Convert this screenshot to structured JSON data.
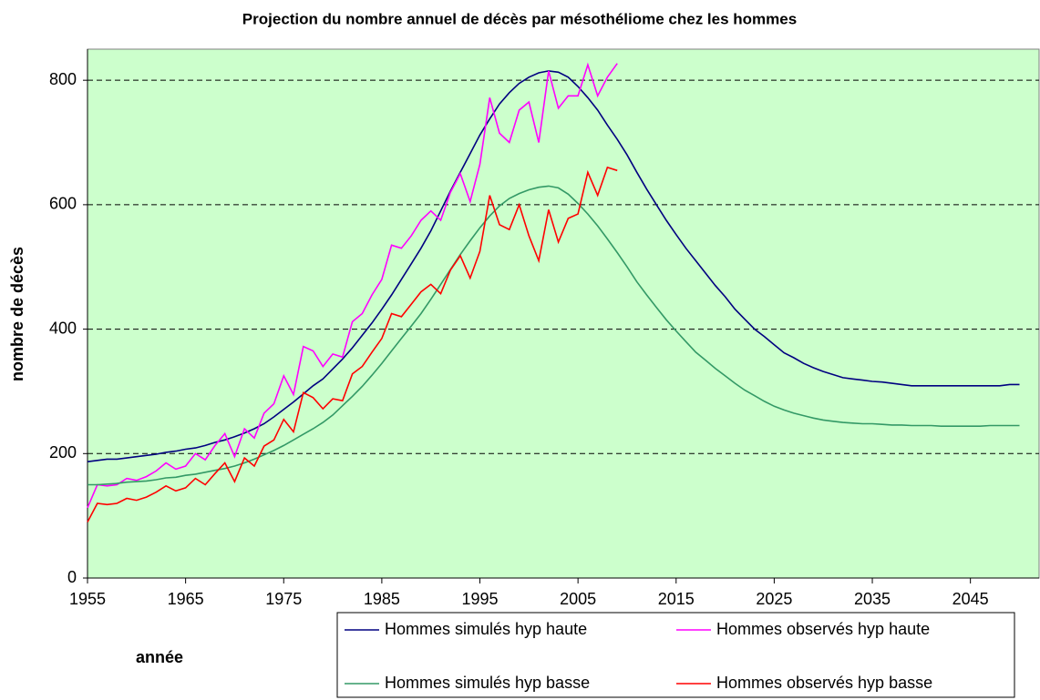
{
  "chart_data": {
    "type": "line",
    "title": "Projection du nombre annuel de décès par mésothéliome chez les hommes",
    "xlabel": "année",
    "ylabel": "nombre de décès",
    "x": [
      1955,
      1956,
      1957,
      1958,
      1959,
      1960,
      1961,
      1962,
      1963,
      1964,
      1965,
      1966,
      1967,
      1968,
      1969,
      1970,
      1971,
      1972,
      1973,
      1974,
      1975,
      1976,
      1977,
      1978,
      1979,
      1980,
      1981,
      1982,
      1983,
      1984,
      1985,
      1986,
      1987,
      1988,
      1989,
      1990,
      1991,
      1992,
      1993,
      1994,
      1995,
      1996,
      1997,
      1998,
      1999,
      2000,
      2001,
      2002,
      2003,
      2004,
      2005,
      2006,
      2007,
      2008,
      2009,
      2010,
      2011,
      2012,
      2013,
      2014,
      2015,
      2016,
      2017,
      2018,
      2019,
      2020,
      2021,
      2022,
      2023,
      2024,
      2025,
      2026,
      2027,
      2028,
      2029,
      2030,
      2031,
      2032,
      2033,
      2034,
      2035,
      2036,
      2037,
      2038,
      2039,
      2040,
      2041,
      2042,
      2043,
      2044,
      2045,
      2046,
      2047,
      2048,
      2049,
      2050
    ],
    "series": [
      {
        "name": "Hommes simulés hyp haute",
        "color": "#000080",
        "values": [
          187,
          189,
          191,
          191,
          193,
          195,
          197,
          199,
          202,
          204,
          207,
          209,
          213,
          218,
          222,
          227,
          233,
          240,
          248,
          259,
          271,
          283,
          296,
          309,
          320,
          336,
          352,
          370,
          390,
          410,
          432,
          455,
          480,
          505,
          530,
          558,
          590,
          622,
          652,
          682,
          712,
          738,
          762,
          780,
          795,
          805,
          812,
          815,
          813,
          805,
          790,
          772,
          752,
          728,
          705,
          680,
          652,
          625,
          600,
          575,
          552,
          530,
          510,
          490,
          470,
          452,
          432,
          416,
          400,
          388,
          375,
          362,
          354,
          345,
          338,
          332,
          327,
          322,
          320,
          318,
          316,
          315,
          313,
          311,
          309,
          309,
          309,
          309,
          309,
          309,
          309,
          309,
          309,
          309,
          311,
          311
        ]
      },
      {
        "name": "Hommes observés hyp haute",
        "color": "#ff00ff",
        "values": [
          113,
          150,
          148,
          150,
          160,
          157,
          163,
          172,
          185,
          175,
          180,
          200,
          190,
          213,
          232,
          195,
          240,
          225,
          265,
          280,
          325,
          295,
          372,
          365,
          340,
          360,
          355,
          412,
          425,
          455,
          480,
          535,
          530,
          550,
          575,
          590,
          575,
          620,
          650,
          605,
          665,
          772,
          715,
          700,
          752,
          765,
          700,
          815,
          755,
          775,
          775,
          825,
          775,
          805,
          827,
          null,
          null,
          null,
          null,
          null,
          null,
          null,
          null,
          null,
          null,
          null,
          null,
          null,
          null,
          null,
          null,
          null,
          null,
          null,
          null,
          null,
          null,
          null,
          null,
          null,
          null,
          null,
          null,
          null,
          null,
          null,
          null,
          null,
          null,
          null,
          null,
          null,
          null,
          null,
          null,
          null
        ]
      },
      {
        "name": "Hommes simulés hyp basse",
        "color": "#339966",
        "values": [
          150,
          150,
          151,
          152,
          154,
          155,
          156,
          158,
          161,
          162,
          165,
          167,
          170,
          173,
          176,
          180,
          185,
          191,
          198,
          205,
          213,
          222,
          231,
          240,
          250,
          262,
          277,
          292,
          308,
          326,
          345,
          365,
          385,
          405,
          425,
          448,
          472,
          496,
          520,
          542,
          563,
          582,
          598,
          610,
          618,
          624,
          628,
          630,
          627,
          617,
          602,
          585,
          566,
          545,
          523,
          500,
          476,
          455,
          435,
          415,
          397,
          380,
          363,
          350,
          337,
          325,
          313,
          302,
          293,
          284,
          276,
          270,
          265,
          261,
          257,
          254,
          252,
          250,
          249,
          248,
          248,
          247,
          246,
          246,
          245,
          245,
          245,
          244,
          244,
          244,
          244,
          244,
          245,
          245,
          245,
          245
        ]
      },
      {
        "name": "Hommes observés hyp basse",
        "color": "#ff0000",
        "values": [
          90,
          120,
          118,
          120,
          128,
          125,
          130,
          138,
          148,
          140,
          145,
          160,
          150,
          168,
          185,
          155,
          193,
          180,
          212,
          222,
          255,
          235,
          298,
          290,
          272,
          288,
          285,
          328,
          340,
          363,
          385,
          425,
          420,
          440,
          460,
          472,
          457,
          495,
          518,
          482,
          525,
          615,
          568,
          560,
          600,
          550,
          510,
          592,
          540,
          578,
          585,
          652,
          615,
          660,
          655,
          null,
          null,
          null,
          null,
          null,
          null,
          null,
          null,
          null,
          null,
          null,
          null,
          null,
          null,
          null,
          null,
          null,
          null,
          null,
          null,
          null,
          null,
          null,
          null,
          null,
          null,
          null,
          null,
          null,
          null,
          null,
          null,
          null,
          null,
          null,
          null,
          null,
          null,
          null,
          null,
          null
        ]
      }
    ],
    "xlim": [
      1955,
      2052
    ],
    "xticks": [
      1955,
      1965,
      1975,
      1985,
      1995,
      2005,
      2015,
      2025,
      2035,
      2045
    ],
    "ylim": [
      0,
      850
    ],
    "yticks": [
      0,
      200,
      400,
      600,
      800
    ],
    "grid": true,
    "background": "#ccffcc",
    "legend": "bottom"
  }
}
